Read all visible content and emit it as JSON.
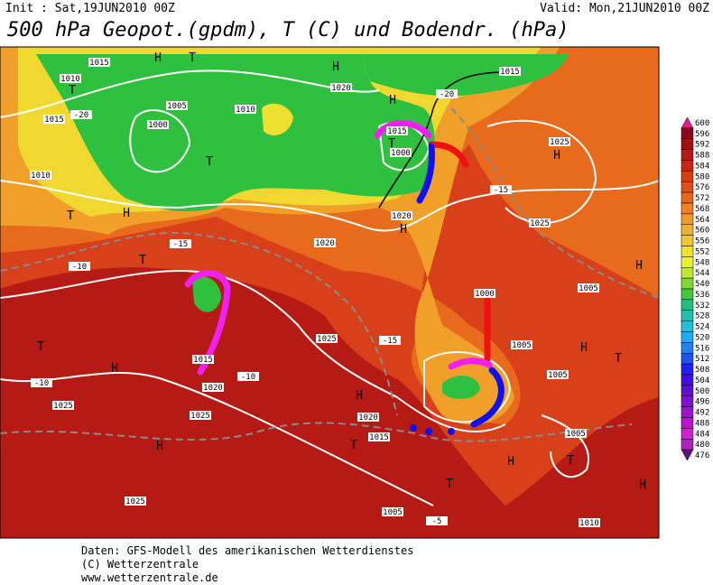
{
  "header": {
    "init": "Init : Sat,19JUN2010 00Z",
    "valid": "Valid: Mon,21JUN2010 00Z",
    "title": "500 hPa Geopot.(gpdm), T (C) und Bodendr. (hPa)"
  },
  "colorbar": {
    "levels": [
      600,
      596,
      592,
      588,
      584,
      580,
      576,
      572,
      568,
      564,
      560,
      556,
      552,
      548,
      544,
      540,
      536,
      532,
      528,
      524,
      520,
      516,
      512,
      508,
      504,
      500,
      496,
      492,
      488,
      484,
      480,
      476
    ],
    "colors": [
      "#e0208f",
      "#8b0a1a",
      "#a01010",
      "#b81818",
      "#c82810",
      "#d83c10",
      "#e05010",
      "#e86818",
      "#f08020",
      "#f09828",
      "#f0b030",
      "#f0c830",
      "#f0e030",
      "#e8f030",
      "#c0e830",
      "#80d830",
      "#40c840",
      "#20c080",
      "#20c0b0",
      "#20c0d8",
      "#20a8f0",
      "#2080f0",
      "#2050f0",
      "#2020f0",
      "#4010e0",
      "#6010d0",
      "#8010d0",
      "#a010d0",
      "#c010d0",
      "#d020d0",
      "#b020c0",
      "#601080"
    ]
  },
  "map_labels": [
    "1015",
    "H",
    "T",
    "1010",
    "T",
    "1015",
    "-20",
    "1005",
    "1010",
    "1000",
    "T",
    "H",
    "1020",
    "1015",
    "-20",
    "H",
    "1015",
    "1000",
    "T",
    "1025",
    "H",
    "-15",
    "1010",
    "T",
    "H",
    "T",
    "-10",
    "-15",
    "1020",
    "1020",
    "H",
    "1025",
    "1005",
    "H",
    "T",
    "H",
    "1015",
    "1020",
    "1025",
    "1025",
    "H",
    "1025",
    "H",
    "1020",
    "1015",
    "T",
    "1005",
    "H",
    "T",
    "1005",
    "1005",
    "H",
    "T",
    "H",
    "T",
    "1025",
    "1005",
    "1010",
    "-5",
    "-10",
    "-10",
    "-15",
    "1000"
  ],
  "footer": [
    "Daten: GFS-Modell des amerikanischen Wetterdienstes",
    "(C) Wetterzentrale",
    "www.wetterzentrale.de"
  ]
}
